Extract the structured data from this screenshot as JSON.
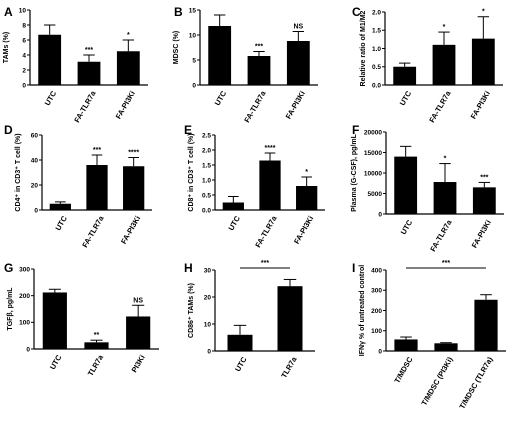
{
  "chart_data": [
    {
      "panel": "A",
      "type": "bar",
      "categories": [
        "UTC",
        "FA-TLR7a",
        "FA-PI3Ki"
      ],
      "values": [
        6.7,
        3.1,
        4.5
      ],
      "errors": [
        1.3,
        0.9,
        1.5
      ],
      "significance": [
        "",
        "***",
        "*"
      ],
      "ylabel": "TAMs (%)",
      "ylim": [
        0,
        10
      ],
      "yticks": [
        "0",
        "2",
        "4",
        "6",
        "8",
        "10"
      ],
      "bar_color": "#000000"
    },
    {
      "panel": "B",
      "type": "bar",
      "categories": [
        "UTC",
        "FA-TLR7a",
        "FA-PI3Ki"
      ],
      "values": [
        11.8,
        5.8,
        8.8
      ],
      "errors": [
        2.2,
        0.9,
        1.9
      ],
      "significance": [
        "",
        "***",
        "NS"
      ],
      "ylabel": "MDSC (%)",
      "ylim": [
        0,
        15
      ],
      "yticks": [
        "0",
        "5",
        "10",
        "15"
      ],
      "bar_color": "#000000"
    },
    {
      "panel": "C",
      "type": "bar",
      "categories": [
        "UTC",
        "FA-TLR7a",
        "FA-PI3Ki"
      ],
      "values": [
        0.5,
        1.1,
        1.27
      ],
      "errors": [
        0.1,
        0.35,
        0.6
      ],
      "significance": [
        "",
        "*",
        "*"
      ],
      "ylabel": "Relative ratio of M1/M2",
      "ylim": [
        0,
        2.0
      ],
      "yticks": [
        "0.0",
        "0.5",
        "1.0",
        "1.5",
        "2.0"
      ],
      "bar_color": "#000000"
    },
    {
      "panel": "D",
      "type": "bar",
      "categories": [
        "UTC",
        "FA-TLR7a",
        "FA-PI3Ki"
      ],
      "values": [
        5,
        36,
        35
      ],
      "errors": [
        1.5,
        8,
        7
      ],
      "significance": [
        "",
        "***",
        "****"
      ],
      "ylabel": "CD4⁺ in CD3⁺ T cell (%)",
      "ylim": [
        0,
        60
      ],
      "yticks": [
        "0",
        "20",
        "40",
        "60"
      ],
      "bar_color": "#000000"
    },
    {
      "panel": "E",
      "type": "bar",
      "categories": [
        "UTC",
        "FA-TLR7a",
        "FA-PI3Ki"
      ],
      "values": [
        0.25,
        1.65,
        0.8
      ],
      "errors": [
        0.2,
        0.25,
        0.3
      ],
      "significance": [
        "",
        "****",
        "*"
      ],
      "ylabel": "CD8⁺ in CD3⁺ T cell (%)",
      "ylim": [
        0,
        2.5
      ],
      "yticks": [
        "0.0",
        "0.5",
        "1.0",
        "1.5",
        "2.0",
        "2.5"
      ],
      "bar_color": "#000000"
    },
    {
      "panel": "F",
      "type": "bar",
      "categories": [
        "UTC",
        "FA-TLR7a",
        "FA-PI3Ki"
      ],
      "values": [
        14000,
        7800,
        6500
      ],
      "errors": [
        2500,
        4500,
        1200
      ],
      "significance": [
        "",
        "*",
        "***"
      ],
      "ylabel": "Plasma (G-CSF), pg/mL",
      "ylim": [
        0,
        20000
      ],
      "yticks": [
        "0",
        "5000",
        "10000",
        "15000",
        "20000"
      ],
      "bar_color": "#000000"
    },
    {
      "panel": "G",
      "type": "bar",
      "categories": [
        "UTC",
        "TLR7a",
        "PI3Ki"
      ],
      "values": [
        212,
        25,
        122
      ],
      "errors": [
        12,
        8,
        42
      ],
      "significance": [
        "",
        "**",
        "NS"
      ],
      "ylabel": "TGFβ, pg/mL",
      "ylim": [
        0,
        300
      ],
      "yticks": [
        "0",
        "100",
        "200",
        "300"
      ],
      "bar_color": "#000000"
    },
    {
      "panel": "H",
      "type": "bar",
      "categories": [
        "UTC",
        "TLR7a"
      ],
      "values": [
        6,
        24
      ],
      "errors": [
        3.5,
        2.5
      ],
      "significance": [
        "",
        ""
      ],
      "bracket": {
        "from": 0,
        "to": 1,
        "label": "***"
      },
      "ylabel": "CD86⁺ TAMs (%)",
      "ylim": [
        0,
        30
      ],
      "yticks": [
        "0",
        "10",
        "20",
        "30"
      ],
      "bar_color": "#000000"
    },
    {
      "panel": "I",
      "type": "bar",
      "categories": [
        "T/MDSC",
        "T/MDSC (PI3Ki)",
        "T/MDSC (TLR7a)"
      ],
      "values": [
        57,
        38,
        253
      ],
      "errors": [
        12,
        3,
        25
      ],
      "significance": [
        "",
        "",
        ""
      ],
      "bracket": {
        "from": 0,
        "to": 2,
        "label": "***"
      },
      "ylabel": "IFNγ % of untreated control",
      "ylim": [
        0,
        400
      ],
      "yticks": [
        "0",
        "100",
        "200",
        "300",
        "400"
      ],
      "bar_color": "#000000"
    }
  ]
}
